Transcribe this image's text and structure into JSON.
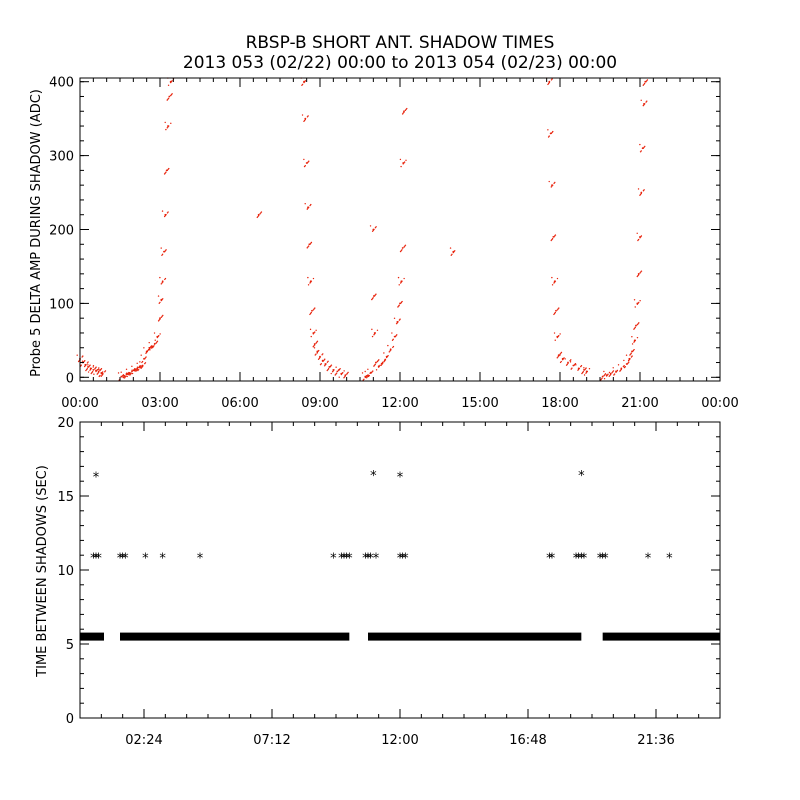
{
  "figure": {
    "title_line1": "RBSP-B SHORT ANT. SHADOW TIMES",
    "title_line2": "2013 053 (02/22) 00:00 to 2013 054 (02/23) 00:00"
  },
  "colors": {
    "top_series": "#e8230c",
    "bottom_series": "#000000",
    "axes": "#000000",
    "background": "#ffffff"
  },
  "chart_data": [
    {
      "type": "scatter",
      "id": "top",
      "ylabel": "Probe 5 DELTA AMP DURING SHADOW (ADC)",
      "xlabel": "",
      "xlim": [
        0,
        24
      ],
      "ylim": [
        -5,
        405
      ],
      "x_unit": "hours",
      "x_ticks": [
        0,
        3,
        6,
        9,
        12,
        15,
        18,
        21,
        24
      ],
      "x_tick_labels": [
        "00:00",
        "03:00",
        "06:00",
        "09:00",
        "12:00",
        "15:00",
        "18:00",
        "21:00",
        "00:00"
      ],
      "y_ticks": [
        0,
        100,
        200,
        300,
        400
      ],
      "y_tick_labels": [
        "0",
        "100",
        "200",
        "300",
        "400"
      ],
      "grid": false,
      "marker": "dot",
      "series": [
        {
          "points": [
            [
              0.0,
              25
            ],
            [
              0.1,
              20
            ],
            [
              0.2,
              17
            ],
            [
              0.3,
              14
            ],
            [
              0.4,
              12
            ],
            [
              0.5,
              10
            ],
            [
              0.6,
              9
            ],
            [
              0.7,
              8
            ],
            [
              0.8,
              6
            ],
            [
              0.85,
              5
            ],
            [
              1.55,
              1
            ],
            [
              1.65,
              2
            ],
            [
              1.75,
              4
            ],
            [
              1.85,
              6
            ],
            [
              1.95,
              8
            ],
            [
              2.05,
              10
            ],
            [
              2.15,
              12
            ],
            [
              2.25,
              14
            ],
            [
              2.35,
              16
            ],
            [
              2.4,
              25
            ],
            [
              2.5,
              35
            ],
            [
              2.6,
              40
            ],
            [
              2.7,
              42
            ],
            [
              2.8,
              45
            ],
            [
              2.9,
              55
            ],
            [
              3.0,
              80
            ],
            [
              3.05,
              105
            ],
            [
              3.1,
              130
            ],
            [
              3.15,
              170
            ],
            [
              3.2,
              220
            ],
            [
              3.25,
              280
            ],
            [
              3.3,
              340
            ],
            [
              3.35,
              380
            ],
            [
              3.4,
              400
            ],
            [
              6.7,
              220
            ],
            [
              8.4,
              400
            ],
            [
              8.45,
              350
            ],
            [
              8.5,
              290
            ],
            [
              8.55,
              230
            ],
            [
              8.6,
              180
            ],
            [
              8.65,
              130
            ],
            [
              8.7,
              90
            ],
            [
              8.75,
              60
            ],
            [
              8.8,
              45
            ],
            [
              8.9,
              35
            ],
            [
              9.0,
              28
            ],
            [
              9.1,
              22
            ],
            [
              9.2,
              18
            ],
            [
              9.35,
              14
            ],
            [
              9.5,
              10
            ],
            [
              9.65,
              8
            ],
            [
              9.8,
              5
            ],
            [
              9.95,
              3
            ],
            [
              10.7,
              1
            ],
            [
              10.8,
              3
            ],
            [
              10.9,
              6
            ],
            [
              11.0,
              200
            ],
            [
              11.02,
              110
            ],
            [
              11.05,
              60
            ],
            [
              11.1,
              20
            ],
            [
              11.2,
              15
            ],
            [
              11.35,
              20
            ],
            [
              11.5,
              28
            ],
            [
              11.65,
              38
            ],
            [
              11.8,
              55
            ],
            [
              11.9,
              75
            ],
            [
              12.0,
              100
            ],
            [
              12.05,
              130
            ],
            [
              12.1,
              175
            ],
            [
              12.12,
              290
            ],
            [
              12.15,
              360
            ],
            [
              14.0,
              170
            ],
            [
              17.6,
              400
            ],
            [
              17.65,
              330
            ],
            [
              17.7,
              260
            ],
            [
              17.75,
              190
            ],
            [
              17.8,
              130
            ],
            [
              17.85,
              90
            ],
            [
              17.9,
              55
            ],
            [
              17.95,
              30
            ],
            [
              18.1,
              25
            ],
            [
              18.3,
              20
            ],
            [
              18.5,
              16
            ],
            [
              18.7,
              12
            ],
            [
              18.9,
              10
            ],
            [
              19.0,
              8
            ],
            [
              19.6,
              1
            ],
            [
              19.75,
              3
            ],
            [
              19.9,
              5
            ],
            [
              20.1,
              8
            ],
            [
              20.3,
              12
            ],
            [
              20.5,
              18
            ],
            [
              20.6,
              25
            ],
            [
              20.7,
              35
            ],
            [
              20.8,
              50
            ],
            [
              20.85,
              70
            ],
            [
              20.9,
              100
            ],
            [
              20.95,
              140
            ],
            [
              21.0,
              190
            ],
            [
              21.05,
              250
            ],
            [
              21.1,
              310
            ],
            [
              21.15,
              370
            ],
            [
              21.2,
              400
            ]
          ]
        }
      ]
    },
    {
      "type": "scatter",
      "id": "bottom",
      "ylabel": "TIME BETWEEN SHADOWS (SEC)",
      "xlabel": "",
      "xlim": [
        0,
        24
      ],
      "ylim": [
        0,
        20
      ],
      "x_unit": "hours",
      "x_ticks": [
        2.4,
        7.2,
        12.0,
        16.8,
        21.6
      ],
      "x_tick_labels": [
        "02:24",
        "07:12",
        "12:00",
        "16:48",
        "21:36"
      ],
      "y_ticks": [
        0,
        5,
        10,
        15,
        20
      ],
      "y_tick_labels": [
        "0",
        "5",
        "10",
        "15",
        "20"
      ],
      "grid": false,
      "marker": "asterisk",
      "series": [
        {
          "segments_at_5_5": [
            [
              0,
              0.9
            ],
            [
              1.5,
              10.1
            ],
            [
              10.8,
              18.8
            ],
            [
              19.6,
              24
            ]
          ],
          "points": [
            [
              0.6,
              16.4
            ],
            [
              11.0,
              16.5
            ],
            [
              12.0,
              16.4
            ],
            [
              18.8,
              16.5
            ],
            [
              0.5,
              10.9
            ],
            [
              0.6,
              10.9
            ],
            [
              0.7,
              10.9
            ],
            [
              1.5,
              10.9
            ],
            [
              1.6,
              10.9
            ],
            [
              1.7,
              10.9
            ],
            [
              2.45,
              10.9
            ],
            [
              3.1,
              10.9
            ],
            [
              4.5,
              10.9
            ],
            [
              9.5,
              10.9
            ],
            [
              9.8,
              10.9
            ],
            [
              9.9,
              10.9
            ],
            [
              10.0,
              10.9
            ],
            [
              10.1,
              10.9
            ],
            [
              10.7,
              10.9
            ],
            [
              10.8,
              10.9
            ],
            [
              10.9,
              10.9
            ],
            [
              11.1,
              10.9
            ],
            [
              12.0,
              10.9
            ],
            [
              12.1,
              10.9
            ],
            [
              12.2,
              10.9
            ],
            [
              17.6,
              10.9
            ],
            [
              17.7,
              10.9
            ],
            [
              18.6,
              10.9
            ],
            [
              18.7,
              10.9
            ],
            [
              18.8,
              10.9
            ],
            [
              18.9,
              10.9
            ],
            [
              19.5,
              10.9
            ],
            [
              19.6,
              10.9
            ],
            [
              19.7,
              10.9
            ],
            [
              21.3,
              10.9
            ],
            [
              22.1,
              10.9
            ]
          ]
        }
      ]
    }
  ]
}
